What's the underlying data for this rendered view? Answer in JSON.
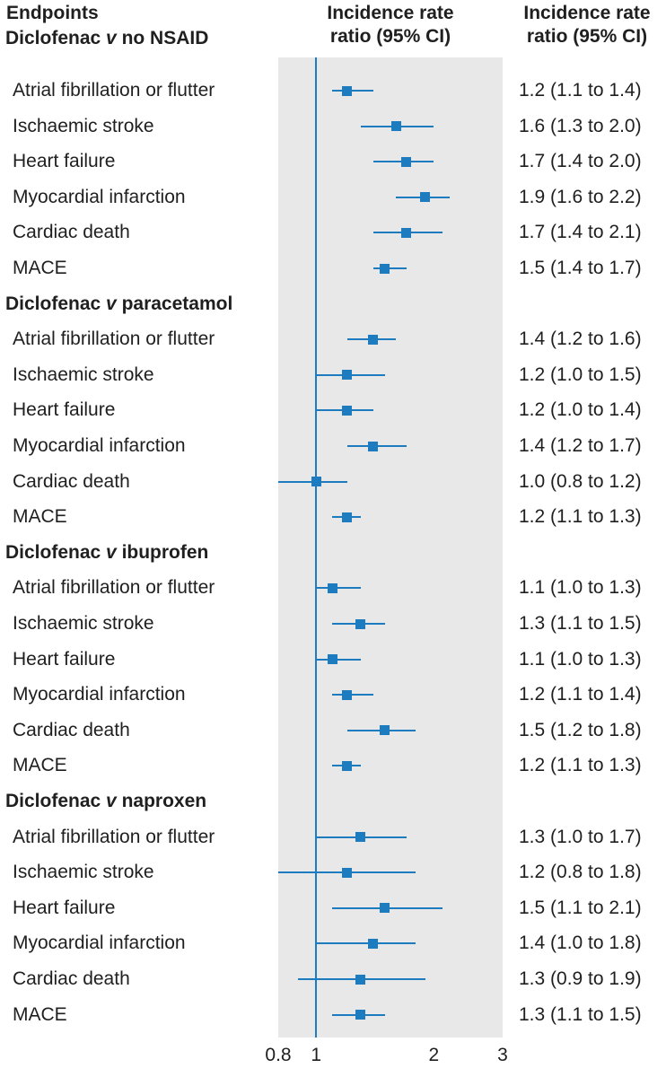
{
  "header": {
    "endpoints_label": "Endpoints",
    "plot_column_title": "Incidence rate\nratio (95% CI)",
    "value_column_title": "Incidence rate\nratio (95% CI)"
  },
  "chart_data": {
    "type": "forest",
    "x_scale": "log",
    "x_min": 0.8,
    "x_max": 3,
    "x_tick_values": [
      0.8,
      1,
      2,
      3
    ],
    "x_tick_labels": [
      "0.8",
      "1",
      "2",
      "3"
    ],
    "reference_value": 1,
    "plot_background": "#e8e8e8",
    "marker_color": "#1d7cc0",
    "text_color": "#1f1f1f",
    "groups": [
      {
        "label_pre": "Diclofenac ",
        "label_v": "v",
        "label_post": " no NSAID",
        "rows": [
          {
            "endpoint": "Atrial fibrillation or flutter",
            "estimate": 1.2,
            "ci_low": 1.1,
            "ci_high": 1.4,
            "label": "1.2 (1.1 to 1.4)"
          },
          {
            "endpoint": "Ischaemic stroke",
            "estimate": 1.6,
            "ci_low": 1.3,
            "ci_high": 2.0,
            "label": "1.6 (1.3 to 2.0)"
          },
          {
            "endpoint": "Heart failure",
            "estimate": 1.7,
            "ci_low": 1.4,
            "ci_high": 2.0,
            "label": "1.7 (1.4 to 2.0)"
          },
          {
            "endpoint": "Myocardial infarction",
            "estimate": 1.9,
            "ci_low": 1.6,
            "ci_high": 2.2,
            "label": "1.9 (1.6 to 2.2)"
          },
          {
            "endpoint": "Cardiac death",
            "estimate": 1.7,
            "ci_low": 1.4,
            "ci_high": 2.1,
            "label": "1.7 (1.4 to 2.1)"
          },
          {
            "endpoint": "MACE",
            "estimate": 1.5,
            "ci_low": 1.4,
            "ci_high": 1.7,
            "label": "1.5 (1.4 to 1.7)"
          }
        ]
      },
      {
        "label_pre": "Diclofenac ",
        "label_v": "v",
        "label_post": " paracetamol",
        "rows": [
          {
            "endpoint": "Atrial fibrillation or flutter",
            "estimate": 1.4,
            "ci_low": 1.2,
            "ci_high": 1.6,
            "label": "1.4 (1.2 to 1.6)"
          },
          {
            "endpoint": "Ischaemic stroke",
            "estimate": 1.2,
            "ci_low": 1.0,
            "ci_high": 1.5,
            "label": "1.2 (1.0 to 1.5)"
          },
          {
            "endpoint": "Heart failure",
            "estimate": 1.2,
            "ci_low": 1.0,
            "ci_high": 1.4,
            "label": "1.2 (1.0 to 1.4)"
          },
          {
            "endpoint": "Myocardial infarction",
            "estimate": 1.4,
            "ci_low": 1.2,
            "ci_high": 1.7,
            "label": "1.4 (1.2 to 1.7)"
          },
          {
            "endpoint": "Cardiac death",
            "estimate": 1.0,
            "ci_low": 0.8,
            "ci_high": 1.2,
            "label": "1.0 (0.8 to 1.2)"
          },
          {
            "endpoint": "MACE",
            "estimate": 1.2,
            "ci_low": 1.1,
            "ci_high": 1.3,
            "label": "1.2 (1.1 to 1.3)"
          }
        ]
      },
      {
        "label_pre": "Diclofenac ",
        "label_v": "v",
        "label_post": " ibuprofen",
        "rows": [
          {
            "endpoint": "Atrial fibrillation or flutter",
            "estimate": 1.1,
            "ci_low": 1.0,
            "ci_high": 1.3,
            "label": "1.1 (1.0 to 1.3)"
          },
          {
            "endpoint": "Ischaemic stroke",
            "estimate": 1.3,
            "ci_low": 1.1,
            "ci_high": 1.5,
            "label": "1.3 (1.1 to 1.5)"
          },
          {
            "endpoint": "Heart failure",
            "estimate": 1.1,
            "ci_low": 1.0,
            "ci_high": 1.3,
            "label": "1.1 (1.0 to 1.3)"
          },
          {
            "endpoint": "Myocardial infarction",
            "estimate": 1.2,
            "ci_low": 1.1,
            "ci_high": 1.4,
            "label": "1.2 (1.1 to 1.4)"
          },
          {
            "endpoint": "Cardiac death",
            "estimate": 1.5,
            "ci_low": 1.2,
            "ci_high": 1.8,
            "label": "1.5 (1.2 to 1.8)"
          },
          {
            "endpoint": "MACE",
            "estimate": 1.2,
            "ci_low": 1.1,
            "ci_high": 1.3,
            "label": "1.2 (1.1 to 1.3)"
          }
        ]
      },
      {
        "label_pre": "Diclofenac ",
        "label_v": "v",
        "label_post": " naproxen",
        "rows": [
          {
            "endpoint": "Atrial fibrillation or flutter",
            "estimate": 1.3,
            "ci_low": 1.0,
            "ci_high": 1.7,
            "label": "1.3 (1.0 to 1.7)"
          },
          {
            "endpoint": "Ischaemic stroke",
            "estimate": 1.2,
            "ci_low": 0.8,
            "ci_high": 1.8,
            "label": "1.2 (0.8 to 1.8)"
          },
          {
            "endpoint": "Heart failure",
            "estimate": 1.5,
            "ci_low": 1.1,
            "ci_high": 2.1,
            "label": "1.5 (1.1 to 2.1)"
          },
          {
            "endpoint": "Myocardial infarction",
            "estimate": 1.4,
            "ci_low": 1.0,
            "ci_high": 1.8,
            "label": "1.4 (1.0 to 1.8)"
          },
          {
            "endpoint": "Cardiac death",
            "estimate": 1.3,
            "ci_low": 0.9,
            "ci_high": 1.9,
            "label": "1.3 (0.9 to 1.9)"
          },
          {
            "endpoint": "MACE",
            "estimate": 1.3,
            "ci_low": 1.1,
            "ci_high": 1.5,
            "label": "1.3 (1.1 to 1.5)"
          }
        ]
      }
    ]
  }
}
